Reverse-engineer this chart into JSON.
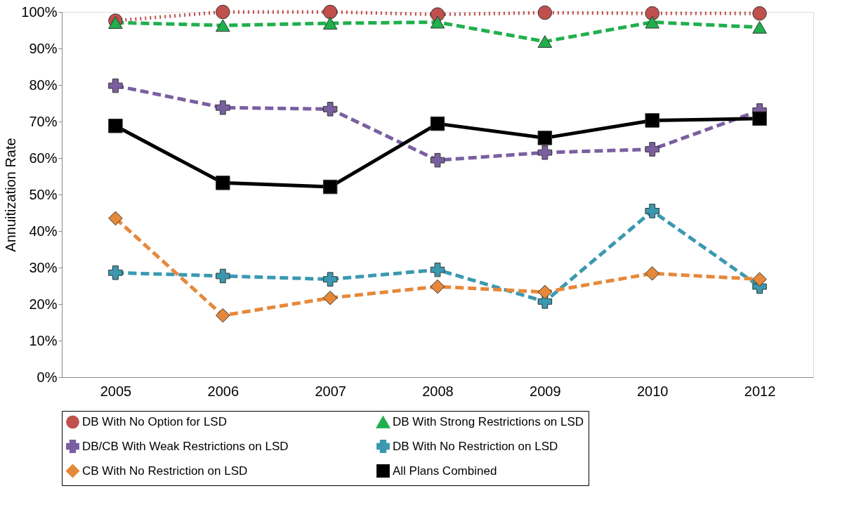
{
  "chart_data": {
    "type": "line",
    "ylabel": "Annuitization Rate",
    "categories": [
      "2005",
      "2006",
      "2007",
      "2008",
      "2009",
      "2010",
      "2012"
    ],
    "ylim": [
      0,
      100
    ],
    "yticks": [
      {
        "value": 0,
        "label": "0%"
      },
      {
        "value": 10,
        "label": "10%"
      },
      {
        "value": 20,
        "label": "20%"
      },
      {
        "value": 30,
        "label": "30%"
      },
      {
        "value": 40,
        "label": "40%"
      },
      {
        "value": 50,
        "label": "50%"
      },
      {
        "value": 60,
        "label": "60%"
      },
      {
        "value": 70,
        "label": "70%"
      },
      {
        "value": 80,
        "label": "80%"
      },
      {
        "value": 90,
        "label": "90%"
      },
      {
        "value": 100,
        "label": "100%"
      }
    ],
    "grid": false,
    "legend": "bottom",
    "series": [
      {
        "name": "DB With No Option for LSD",
        "color": "#c0504d",
        "marker": "circle",
        "line_style": "dotted",
        "values": [
          97.6,
          100,
          100,
          99.3,
          99.8,
          99.6,
          99.6
        ]
      },
      {
        "name": "DB With Strong Restrictions on LSD",
        "color": "#1fb04c",
        "marker": "triangle",
        "line_style": "dashed",
        "values": [
          97.1,
          96.3,
          96.9,
          97.2,
          91.9,
          97.2,
          95.8
        ]
      },
      {
        "name": "DB/CB With Weak Restrictions on LSD",
        "color": "#7a5fa0",
        "marker": "cross",
        "line_style": "dashed",
        "values": [
          79.8,
          73.8,
          73.4,
          59.4,
          61.5,
          62.4,
          73.0
        ]
      },
      {
        "name": "DB With No Restriction on LSD",
        "color": "#3a99b0",
        "marker": "cross",
        "line_style": "dashed",
        "values": [
          28.6,
          27.7,
          26.8,
          29.4,
          20.7,
          45.5,
          24.8
        ]
      },
      {
        "name": "CB With No Restriction on LSD",
        "color": "#e6883a",
        "marker": "diamond",
        "line_style": "dashed",
        "values": [
          43.5,
          16.9,
          21.7,
          24.8,
          23.3,
          28.4,
          26.8
        ]
      },
      {
        "name": "All Plans Combined",
        "color": "#000000",
        "marker": "square",
        "line_style": "solid",
        "values": [
          68.8,
          53.2,
          52.1,
          69.4,
          65.5,
          70.3,
          70.8
        ]
      }
    ]
  }
}
